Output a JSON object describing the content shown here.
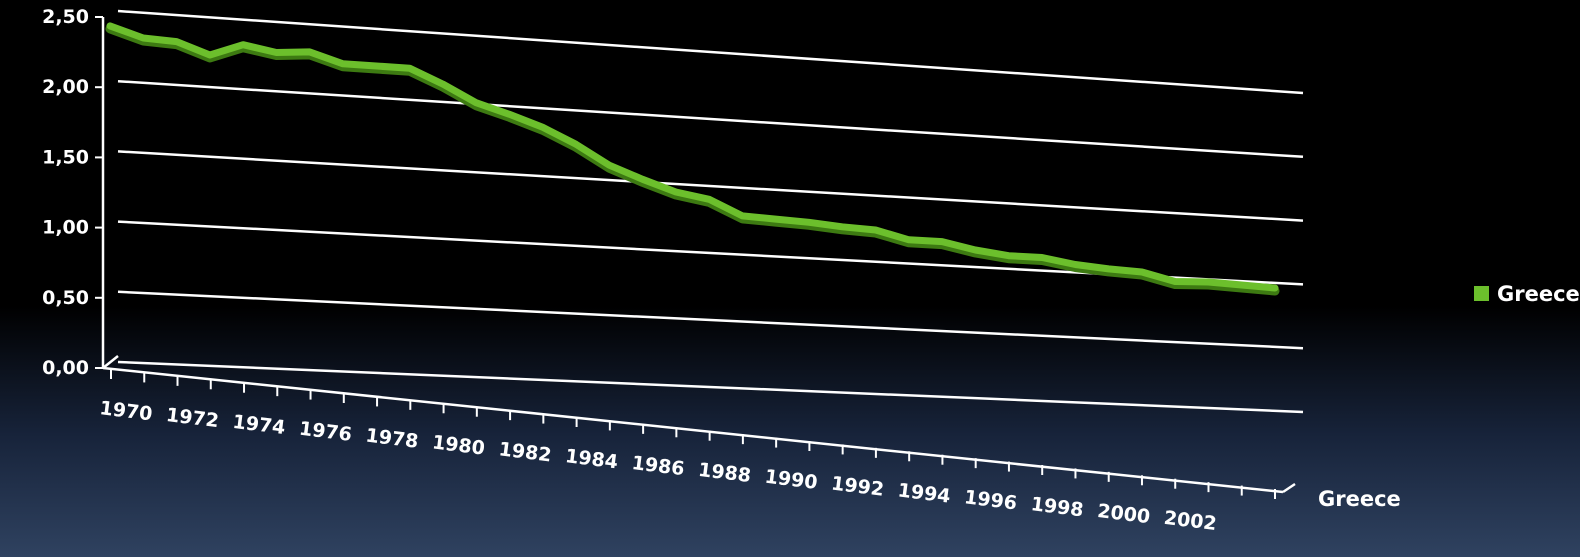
{
  "chart_data": {
    "type": "line",
    "title": "",
    "xlabel": "",
    "ylabel": "",
    "ylim": [
      0,
      2.5
    ],
    "y_ticks": [
      "0,00",
      "0,50",
      "1,00",
      "1,50",
      "2,00",
      "2,50"
    ],
    "y_tick_values": [
      0,
      0.5,
      1.0,
      1.5,
      2.0,
      2.5
    ],
    "x_tick_labels": [
      "1970",
      "1972",
      "1974",
      "1976",
      "1978",
      "1980",
      "1982",
      "1984",
      "1986",
      "1988",
      "1990",
      "1992",
      "1994",
      "1996",
      "1998",
      "2000",
      "2002"
    ],
    "x": [
      1970,
      1971,
      1972,
      1973,
      1974,
      1975,
      1976,
      1977,
      1978,
      1979,
      1980,
      1981,
      1982,
      1983,
      1984,
      1985,
      1986,
      1987,
      1988,
      1989,
      1990,
      1991,
      1992,
      1993,
      1994,
      1995,
      1996,
      1997,
      1998,
      1999,
      2000,
      2001,
      2002,
      2003,
      2004,
      2005
    ],
    "series": [
      {
        "name": "Greece",
        "color": "#6cbf2c",
        "values": [
          2.39,
          2.32,
          2.31,
          2.23,
          2.32,
          2.28,
          2.3,
          2.23,
          2.23,
          2.23,
          2.13,
          2.01,
          1.94,
          1.86,
          1.75,
          1.61,
          1.52,
          1.44,
          1.4,
          1.29,
          1.28,
          1.27,
          1.25,
          1.24,
          1.18,
          1.18,
          1.13,
          1.1,
          1.1,
          1.06,
          1.04,
          1.03,
          0.97,
          0.98,
          0.97,
          0.96
        ]
      }
    ],
    "legend": {
      "position": "right",
      "entries": [
        "Greece"
      ]
    },
    "depth_axis_label": "Greece",
    "grid": true,
    "style": "3d-line"
  }
}
